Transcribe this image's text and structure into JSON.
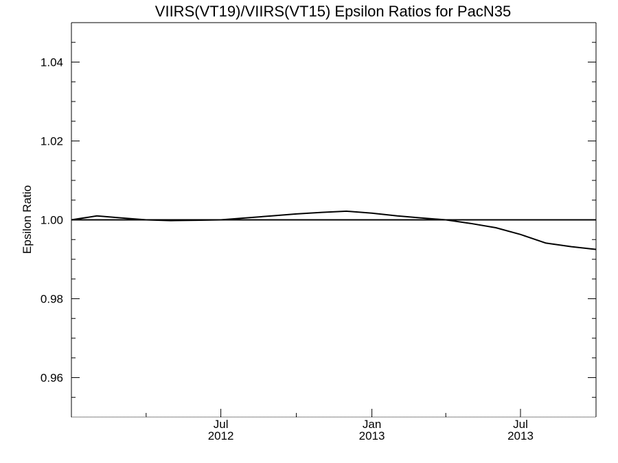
{
  "chart_data": {
    "type": "line",
    "title": "VIIRS(VT19)/VIIRS(VT15)  Epsilon Ratios for PacN35",
    "xlabel": "",
    "ylabel": "Epsilon Ratio",
    "xlim": [
      "2012-01-01",
      "2013-10-01"
    ],
    "ylim": [
      0.95,
      1.05
    ],
    "yticks": [
      {
        "value": 0.96,
        "label": "0.96"
      },
      {
        "value": 0.98,
        "label": "0.98"
      },
      {
        "value": 1.0,
        "label": "1.00"
      },
      {
        "value": 1.02,
        "label": "1.02"
      },
      {
        "value": 1.04,
        "label": "1.04"
      }
    ],
    "y_minor_step": 0.005,
    "xticks_major": [
      {
        "date": "2012-07-01",
        "label": [
          "Jul",
          "2012"
        ]
      },
      {
        "date": "2013-01-01",
        "label": [
          "Jan",
          "2013"
        ]
      },
      {
        "date": "2013-07-01",
        "label": [
          "Jul",
          "2013"
        ]
      }
    ],
    "xticks_minor": [
      "2012-04-01",
      "2012-10-01",
      "2013-04-01",
      "2013-10-01"
    ],
    "grid": false,
    "reference_line": {
      "y": 1.0
    },
    "series": [
      {
        "points": [
          {
            "x": "2012-01-01",
            "y": 1.0
          },
          {
            "x": "2012-02-01",
            "y": 1.001
          },
          {
            "x": "2012-03-01",
            "y": 1.0005
          },
          {
            "x": "2012-04-01",
            "y": 1.0
          },
          {
            "x": "2012-05-01",
            "y": 0.9998
          },
          {
            "x": "2012-06-01",
            "y": 0.9999
          },
          {
            "x": "2012-07-01",
            "y": 1.0
          },
          {
            "x": "2012-08-01",
            "y": 1.0005
          },
          {
            "x": "2012-09-01",
            "y": 1.001
          },
          {
            "x": "2012-10-01",
            "y": 1.0015
          },
          {
            "x": "2012-11-01",
            "y": 1.0019
          },
          {
            "x": "2012-12-01",
            "y": 1.0022
          },
          {
            "x": "2013-01-01",
            "y": 1.0017
          },
          {
            "x": "2013-02-01",
            "y": 1.001
          },
          {
            "x": "2013-03-01",
            "y": 1.0005
          },
          {
            "x": "2013-04-01",
            "y": 1.0
          },
          {
            "x": "2013-05-01",
            "y": 0.9991
          },
          {
            "x": "2013-06-01",
            "y": 0.998
          },
          {
            "x": "2013-07-01",
            "y": 0.9963
          },
          {
            "x": "2013-08-01",
            "y": 0.9941
          },
          {
            "x": "2013-09-01",
            "y": 0.9932
          },
          {
            "x": "2013-10-01",
            "y": 0.9925
          }
        ]
      }
    ],
    "colors": {
      "line": "#000000",
      "axes": "#000000",
      "background": "#ffffff"
    }
  }
}
